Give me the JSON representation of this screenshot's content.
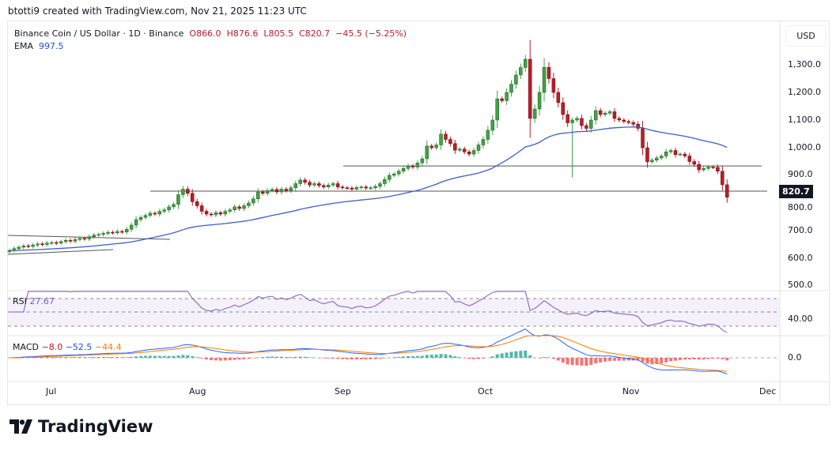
{
  "credit": "btotti9 created with TradingView.com, Nov 21, 2025 11:23 UTC",
  "symbol": {
    "title": "Binance Coin / US Dollar · 1D · Binance",
    "open": "O866.0",
    "high": "H876.6",
    "low": "L805.5",
    "close": "C820.7",
    "change": "−45.5 (−5.25%)"
  },
  "ema": {
    "label": "EMA",
    "value": "997.5"
  },
  "rsi": {
    "label": "RSI",
    "value": "27.67",
    "axis": "40.00"
  },
  "macd": {
    "label": "MACD",
    "hist": "−8.0",
    "macd": "−52.5",
    "signal": "−44.4",
    "axis": "0.0"
  },
  "currency": "USD",
  "last_price": "820.7",
  "price_axis": [
    "1,300.0",
    "1,200.0",
    "1,100.0",
    "1,000.0",
    "900.0",
    "800.0",
    "700.0",
    "600.0",
    "500.0"
  ],
  "time_axis": [
    "Jul",
    "Aug",
    "Sep",
    "Oct",
    "Nov",
    "Dec"
  ],
  "brand": "TradingView",
  "colors": {
    "up": "#43a047",
    "down": "#b2202d",
    "ema": "#3b5fc9",
    "rsi": "#7e57c2",
    "macd": "#2962ff",
    "signal": "#f57c00"
  },
  "chart_data": {
    "type": "candlestick",
    "start_date": "2025-06-21",
    "interval": "1D",
    "closes": [
      628,
      635,
      640,
      645,
      643,
      648,
      652,
      650,
      655,
      657,
      655,
      660,
      665,
      662,
      668,
      672,
      670,
      678,
      684,
      686,
      690,
      694,
      692,
      697,
      695,
      705,
      720,
      740,
      748,
      755,
      763,
      760,
      770,
      775,
      786,
      795,
      830,
      850,
      835,
      805,
      790,
      770,
      760,
      757,
      765,
      760,
      770,
      775,
      786,
      780,
      790,
      800,
      815,
      840,
      835,
      845,
      849,
      840,
      850,
      845,
      855,
      870,
      883,
      875,
      865,
      870,
      863,
      858,
      865,
      870,
      858,
      855,
      854,
      850,
      856,
      858,
      854,
      855,
      860,
      870,
      885,
      900,
      905,
      915,
      925,
      934,
      930,
      945,
      960,
      1006,
      1000,
      1010,
      1049,
      1030,
      1015,
      991,
      995,
      985,
      977,
      990,
      1010,
      1030,
      1063,
      1100,
      1177,
      1170,
      1200,
      1230,
      1263,
      1290,
      1320,
      1106,
      1140,
      1200,
      1291,
      1250,
      1200,
      1163,
      1120,
      1090,
      1100,
      1106,
      1080,
      1070,
      1100,
      1134,
      1120,
      1125,
      1130,
      1106,
      1100,
      1095,
      1091,
      1085,
      1070,
      1000,
      949,
      955,
      963,
      970,
      985,
      990,
      975,
      977,
      970,
      950,
      940,
      920,
      925,
      930,
      929,
      915,
      866,
      820.7
    ],
    "ylim": [
      500,
      1360
    ],
    "horizontal_levels": [
      843,
      934
    ]
  }
}
